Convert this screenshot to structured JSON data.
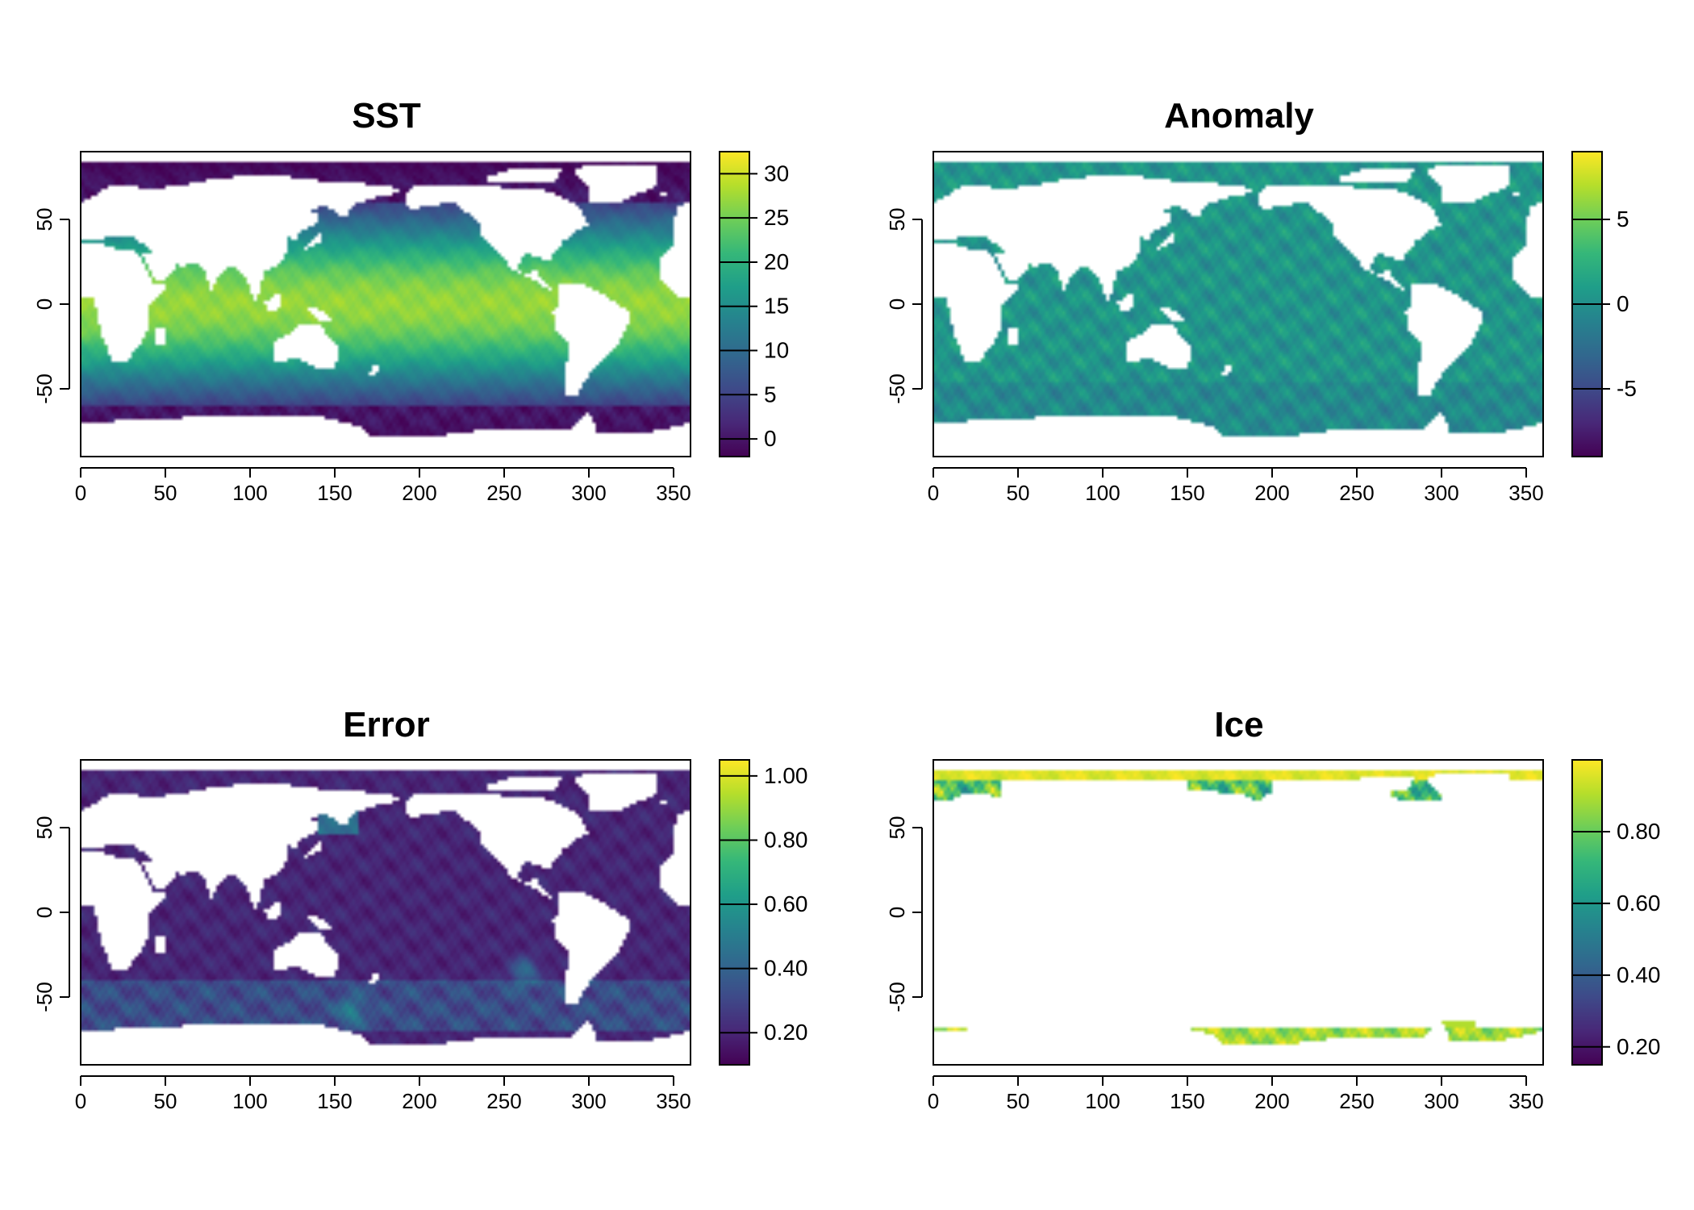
{
  "figure": {
    "panels": [
      {
        "key": "sst",
        "title": "SST"
      },
      {
        "key": "anomaly",
        "title": "Anomaly"
      },
      {
        "key": "error",
        "title": "Error"
      },
      {
        "key": "ice",
        "title": "Ice"
      }
    ]
  },
  "colors": {
    "viridis": [
      "#440154",
      "#482878",
      "#3e4a89",
      "#31688e",
      "#26828e",
      "#1f9e89",
      "#35b779",
      "#6ece58",
      "#b5de2b",
      "#fde725"
    ],
    "land": "#ffffff",
    "axis": "#000000"
  },
  "chart_data": [
    {
      "key": "sst",
      "type": "heatmap",
      "title": "SST",
      "xlabel": "",
      "ylabel": "",
      "xlim": [
        0,
        360
      ],
      "ylim": [
        -90,
        90
      ],
      "x_ticks": [
        0,
        50,
        100,
        150,
        200,
        250,
        300,
        350
      ],
      "y_ticks": [
        -50,
        0,
        50
      ],
      "colorbar": {
        "min": -2,
        "max": 32.5,
        "ticks": [
          0,
          5,
          10,
          15,
          20,
          25,
          30
        ],
        "tick_labels": [
          "0",
          "5",
          "10",
          "15",
          "20",
          "25",
          "30"
        ]
      },
      "field_description": {
        "equator": 28,
        "high_latitude": -1.5
      }
    },
    {
      "key": "anomaly",
      "type": "heatmap",
      "title": "Anomaly",
      "xlabel": "",
      "ylabel": "",
      "xlim": [
        0,
        360
      ],
      "ylim": [
        -90,
        90
      ],
      "x_ticks": [
        0,
        50,
        100,
        150,
        200,
        250,
        300,
        350
      ],
      "y_ticks": [
        -50,
        0,
        50
      ],
      "colorbar": {
        "min": -9,
        "max": 9,
        "ticks": [
          -5,
          0,
          5
        ],
        "tick_labels": [
          "-5",
          "0",
          "5"
        ]
      },
      "field_description": {
        "typical": 0.5,
        "spread": 1.5
      }
    },
    {
      "key": "error",
      "type": "heatmap",
      "title": "Error",
      "xlabel": "",
      "ylabel": "",
      "xlim": [
        0,
        360
      ],
      "ylim": [
        -90,
        90
      ],
      "x_ticks": [
        0,
        50,
        100,
        150,
        200,
        250,
        300,
        350
      ],
      "y_ticks": [
        -50,
        0,
        50
      ],
      "colorbar": {
        "min": 0.1,
        "max": 1.05,
        "ticks": [
          0.2,
          0.4,
          0.6,
          0.8,
          1.0
        ],
        "tick_labels": [
          "0.20",
          "0.40",
          "0.60",
          "0.80",
          "1.00"
        ]
      },
      "field_description": {
        "typical": 0.22,
        "southern_ocean": 0.45
      }
    },
    {
      "key": "ice",
      "type": "heatmap",
      "title": "Ice",
      "xlabel": "",
      "ylabel": "",
      "xlim": [
        0,
        360
      ],
      "ylim": [
        -90,
        90
      ],
      "x_ticks": [
        0,
        50,
        100,
        150,
        200,
        250,
        300,
        350
      ],
      "y_ticks": [
        -50,
        0,
        50
      ],
      "colorbar": {
        "min": 0.15,
        "max": 1.0,
        "ticks": [
          0.2,
          0.4,
          0.6,
          0.8
        ],
        "tick_labels": [
          "0.20",
          "0.40",
          "0.60",
          "0.80"
        ]
      },
      "field_description": {
        "arctic_pack": 0.97,
        "antarctic_pack": 0.9,
        "edge": 0.3
      }
    }
  ]
}
